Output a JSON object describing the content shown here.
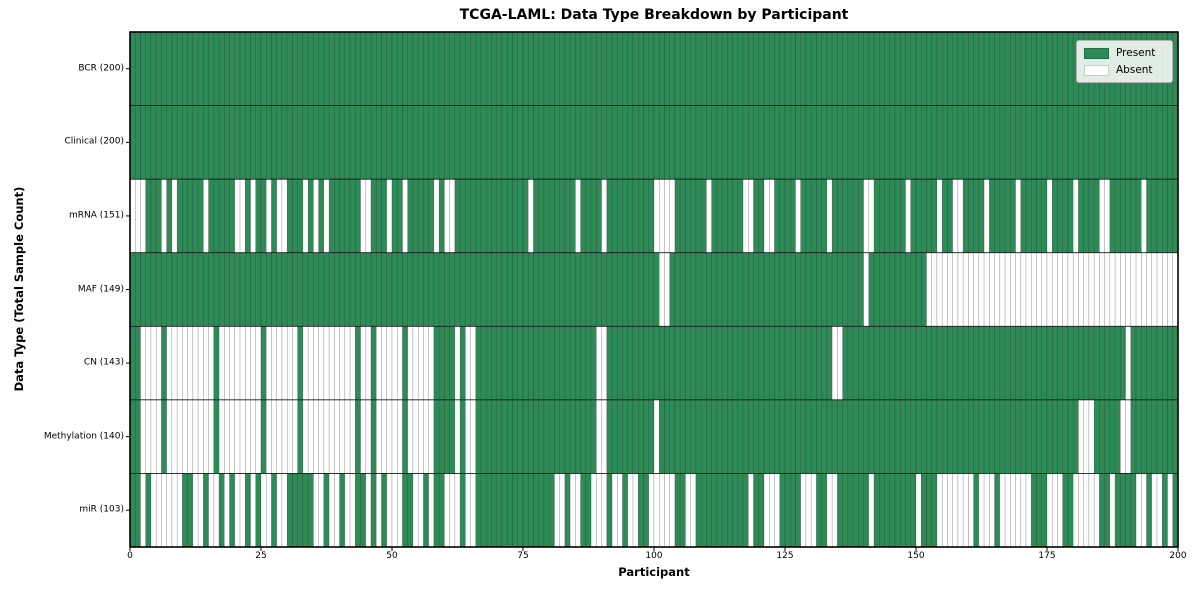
{
  "colors": {
    "present": "#2e8b57",
    "absent": "#ffffff",
    "cell_edge": "rgba(0,0,0,0.32)",
    "row_divider": "#1a1a1a",
    "plot_border": "#000000",
    "legend_border": "#b3b3b3"
  },
  "chart_data": {
    "type": "heatmap",
    "title": "TCGA-LAML: Data Type Breakdown by Participant",
    "xlabel": "Participant",
    "ylabel": "Data Type (Total Sample Count)",
    "x_range": [
      0,
      200
    ],
    "x_ticks": [
      0,
      25,
      50,
      75,
      100,
      125,
      150,
      175,
      200
    ],
    "n_participants": 200,
    "grid": false,
    "legend_position": "upper right",
    "legend": [
      {
        "label": "Present",
        "color": "#2e8b57"
      },
      {
        "label": "Absent",
        "color": "#ffffff"
      }
    ],
    "cell_values": {
      "present": 1,
      "absent": 0
    },
    "rows": [
      {
        "label": "BCR (200)",
        "data_type": "BCR",
        "present_count": 200,
        "absent_indices": []
      },
      {
        "label": "Clinical (200)",
        "data_type": "Clinical",
        "present_count": 200,
        "absent_indices": []
      },
      {
        "label": "mRNA (151)",
        "data_type": "mRNA",
        "present_count": 151,
        "absent_indices": [
          0,
          1,
          2,
          6,
          8,
          14,
          20,
          21,
          23,
          26,
          28,
          29,
          33,
          35,
          37,
          44,
          45,
          49,
          52,
          58,
          60,
          61,
          76,
          85,
          90,
          100,
          101,
          102,
          103,
          110,
          117,
          118,
          121,
          122,
          127,
          133,
          140,
          141,
          148,
          154,
          157,
          158,
          163,
          169,
          175,
          180,
          185,
          186,
          193
        ]
      },
      {
        "label": "MAF (149)",
        "data_type": "MAF",
        "present_count": 149,
        "absent_indices": [
          101,
          102,
          140,
          152,
          153,
          154,
          155,
          156,
          157,
          158,
          159,
          160,
          161,
          162,
          163,
          164,
          165,
          166,
          167,
          168,
          169,
          170,
          171,
          172,
          173,
          174,
          175,
          176,
          177,
          178,
          179,
          180,
          181,
          182,
          183,
          184,
          185,
          186,
          187,
          188,
          189,
          190,
          191,
          192,
          193,
          194,
          195,
          196,
          197,
          198,
          199
        ]
      },
      {
        "label": "CN (143)",
        "data_type": "CN",
        "present_count": 143,
        "absent_indices": [
          2,
          3,
          4,
          5,
          7,
          8,
          9,
          10,
          11,
          12,
          13,
          14,
          15,
          17,
          18,
          19,
          20,
          21,
          22,
          23,
          24,
          26,
          27,
          28,
          29,
          30,
          31,
          33,
          34,
          35,
          36,
          37,
          38,
          39,
          40,
          41,
          42,
          44,
          45,
          47,
          48,
          49,
          50,
          51,
          53,
          54,
          55,
          56,
          57,
          62,
          64,
          65,
          89,
          90,
          134,
          135,
          190
        ]
      },
      {
        "label": "Methylation (140)",
        "data_type": "Methylation",
        "present_count": 140,
        "absent_indices": [
          2,
          3,
          4,
          5,
          7,
          8,
          9,
          10,
          11,
          12,
          13,
          14,
          15,
          17,
          18,
          19,
          20,
          21,
          22,
          23,
          24,
          26,
          27,
          28,
          29,
          30,
          31,
          33,
          34,
          35,
          36,
          37,
          38,
          39,
          40,
          41,
          42,
          44,
          45,
          47,
          48,
          49,
          50,
          51,
          53,
          54,
          55,
          56,
          57,
          62,
          64,
          65,
          89,
          90,
          100,
          181,
          182,
          183,
          189,
          190
        ]
      },
      {
        "label": "miR (103)",
        "data_type": "miR",
        "present_count": 103,
        "absent_indices": [
          2,
          4,
          5,
          6,
          7,
          8,
          9,
          12,
          13,
          15,
          16,
          18,
          20,
          21,
          23,
          25,
          26,
          28,
          29,
          35,
          36,
          38,
          39,
          41,
          42,
          45,
          47,
          49,
          50,
          51,
          54,
          55,
          57,
          60,
          61,
          62,
          64,
          65,
          81,
          82,
          84,
          85,
          88,
          89,
          90,
          92,
          93,
          95,
          96,
          99,
          100,
          101,
          102,
          103,
          106,
          107,
          118,
          121,
          122,
          123,
          128,
          129,
          130,
          133,
          134,
          141,
          150,
          154,
          155,
          156,
          157,
          158,
          159,
          160,
          162,
          163,
          164,
          166,
          167,
          168,
          169,
          170,
          171,
          175,
          176,
          177,
          180,
          181,
          182,
          183,
          184,
          187,
          192,
          193,
          195,
          196,
          198
        ]
      }
    ]
  }
}
